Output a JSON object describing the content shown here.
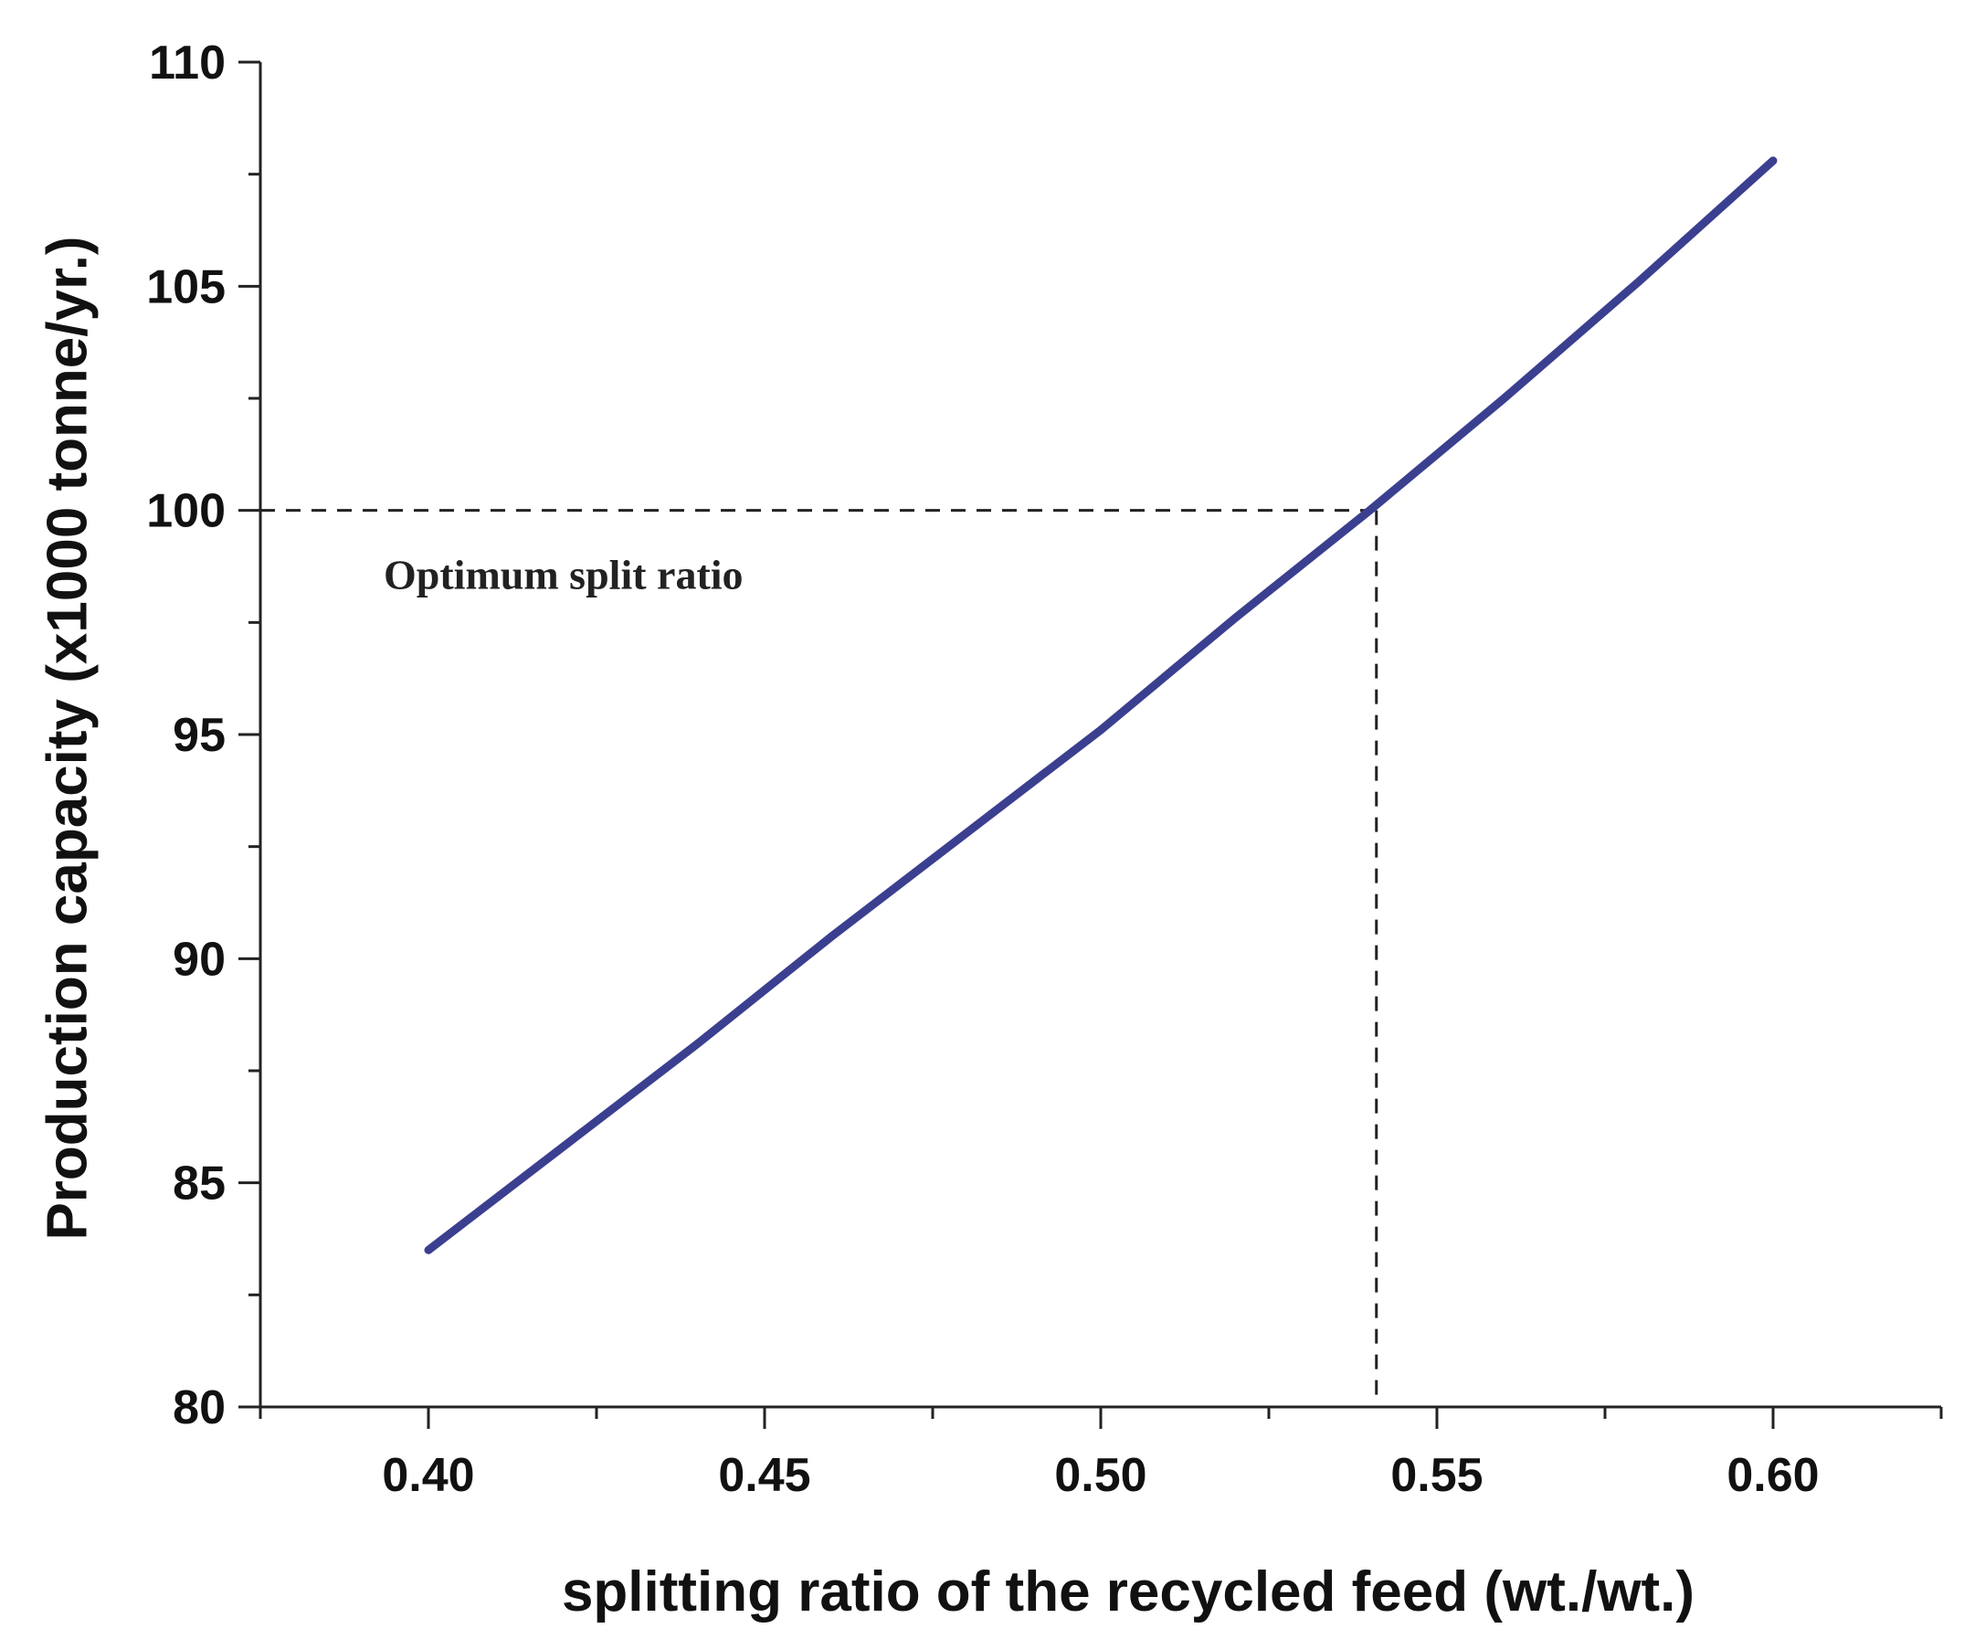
{
  "chart_data": {
    "type": "line",
    "title": "",
    "xlabel": "splitting ratio of the recycled feed (wt./wt.)",
    "ylabel": "Production capacity (x1000 tonne/yr.)",
    "xlim": [
      0.375,
      0.625
    ],
    "ylim": [
      80,
      110
    ],
    "x_ticks": [
      0.4,
      0.45,
      0.5,
      0.55,
      0.6
    ],
    "x_tick_labels": [
      "0.40",
      "0.45",
      "0.50",
      "0.55",
      "0.60"
    ],
    "x_minor_ticks": [
      0.375,
      0.425,
      0.475,
      0.525,
      0.575,
      0.625
    ],
    "y_ticks": [
      80,
      85,
      90,
      95,
      100,
      105,
      110
    ],
    "y_tick_labels": [
      "80",
      "85",
      "90",
      "95",
      "100",
      "105",
      "110"
    ],
    "y_minor_ticks": [
      82.5,
      87.5,
      92.5,
      97.5,
      102.5,
      107.5
    ],
    "grid": false,
    "series": [
      {
        "name": "Production capacity",
        "color": "#3b3f8f",
        "x": [
          0.4,
          0.42,
          0.44,
          0.46,
          0.48,
          0.5,
          0.52,
          0.54,
          0.56,
          0.58,
          0.6
        ],
        "values": [
          83.5,
          85.8,
          88.1,
          90.5,
          92.8,
          95.1,
          97.6,
          100.0,
          102.5,
          105.1,
          107.8
        ]
      }
    ],
    "reference": {
      "x": 0.541,
      "y": 100,
      "label": "Optimum split ratio"
    }
  }
}
